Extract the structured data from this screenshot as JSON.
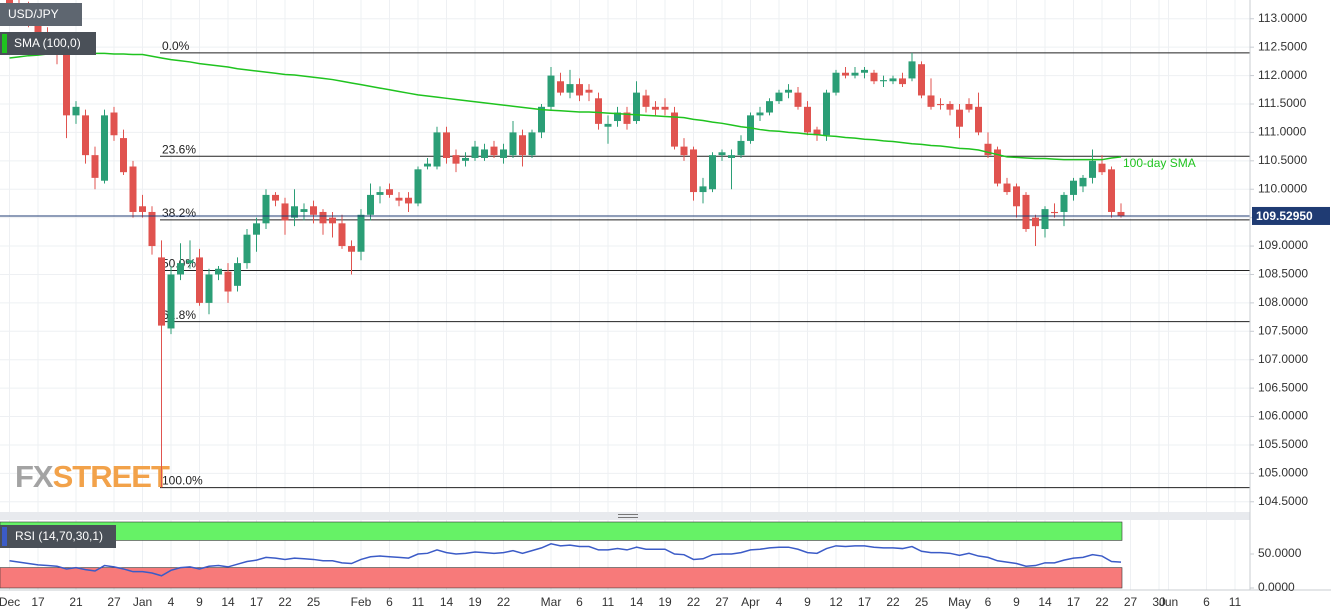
{
  "chart_data": [
    {
      "type": "candlestick",
      "title": "USD/JPY",
      "categories": [
        "Dec",
        null,
        null,
        "17",
        null,
        null,
        null,
        "21",
        null,
        null,
        null,
        "27",
        null,
        null,
        "Jan",
        null,
        null,
        "4",
        null,
        null,
        "9",
        null,
        null,
        "14",
        null,
        null,
        "17",
        null,
        null,
        "22",
        null,
        null,
        "25",
        null,
        null,
        null,
        null,
        "Feb",
        null,
        null,
        "6",
        null,
        null,
        "11",
        null,
        null,
        "14",
        null,
        null,
        "19",
        null,
        null,
        "22",
        null,
        null,
        null,
        null,
        "Mar",
        null,
        null,
        "6",
        null,
        null,
        "11",
        null,
        null,
        "14",
        null,
        null,
        "19",
        null,
        null,
        "22",
        null,
        null,
        "27",
        null,
        null,
        "Apr",
        null,
        null,
        "4",
        null,
        null,
        "9",
        null,
        null,
        "12",
        null,
        null,
        "17",
        null,
        null,
        "22",
        null,
        null,
        "25",
        null,
        null,
        null,
        "May",
        null,
        null,
        "6",
        null,
        null,
        "9",
        null,
        null,
        "14",
        null,
        null,
        "17",
        null,
        null,
        "22",
        null,
        null,
        "27",
        null,
        null,
        "30",
        "Jun",
        null,
        null,
        null,
        "6",
        null,
        null,
        "11"
      ],
      "open": [
        113.35,
        113.2,
        113.05,
        112.9,
        112.7,
        112.6,
        112.5,
        111.3,
        111.3,
        110.6,
        110.15,
        111.35,
        110.9,
        110.4,
        109.7,
        109.6,
        108.8,
        107.55,
        108.5,
        108.7,
        108.8,
        108.0,
        108.5,
        108.55,
        108.3,
        108.7,
        109.2,
        109.4,
        109.9,
        109.75,
        109.5,
        109.6,
        109.7,
        109.6,
        109.5,
        109.4,
        109.0,
        108.9,
        109.55,
        109.9,
        110.0,
        109.85,
        109.85,
        109.75,
        110.4,
        110.4,
        111.0,
        110.6,
        110.5,
        110.55,
        110.55,
        110.75,
        110.55,
        110.6,
        110.95,
        110.6,
        111.0,
        111.45,
        111.9,
        111.7,
        111.85,
        111.75,
        111.6,
        111.1,
        111.2,
        111.35,
        111.2,
        111.65,
        111.45,
        111.45,
        111.35,
        110.75,
        110.7,
        109.95,
        110.0,
        110.6,
        110.55,
        110.6,
        110.85,
        111.3,
        111.35,
        111.55,
        111.7,
        111.7,
        111.45,
        111.05,
        110.95,
        111.7,
        112.05,
        112.0,
        112.05,
        112.05,
        111.9,
        111.9,
        111.95,
        111.95,
        112.2,
        111.65,
        111.5,
        111.5,
        111.4,
        111.5,
        111.45,
        110.8,
        110.7,
        110.1,
        110.05,
        109.9,
        109.5,
        109.3,
        109.6,
        109.6,
        109.9,
        110.05,
        110.2,
        110.45,
        110.35,
        109.6,
        null,
        null,
        null,
        null,
        null,
        null,
        null,
        null,
        null,
        null,
        null,
        null
      ],
      "high": [
        113.5,
        113.4,
        113.3,
        113.05,
        112.85,
        112.7,
        112.6,
        111.55,
        111.4,
        110.75,
        111.4,
        111.45,
        111.05,
        110.5,
        109.9,
        109.7,
        109.1,
        108.65,
        109.05,
        109.1,
        108.95,
        108.6,
        108.65,
        108.7,
        108.8,
        109.3,
        109.5,
        110.0,
        109.95,
        109.85,
        110.0,
        109.75,
        109.8,
        109.65,
        109.6,
        109.55,
        109.1,
        109.65,
        110.1,
        110.05,
        110.1,
        109.95,
        109.95,
        110.4,
        110.55,
        111.1,
        111.1,
        110.7,
        110.65,
        110.85,
        110.8,
        110.85,
        110.8,
        111.2,
        111.05,
        111.05,
        111.5,
        112.15,
        112.05,
        112.1,
        111.95,
        111.85,
        111.7,
        111.3,
        111.45,
        111.45,
        111.9,
        111.75,
        111.55,
        111.6,
        111.45,
        110.9,
        110.75,
        110.2,
        110.65,
        110.7,
        110.7,
        110.95,
        111.35,
        111.45,
        111.6,
        111.75,
        111.85,
        111.8,
        111.55,
        111.1,
        111.75,
        112.1,
        112.15,
        112.15,
        112.15,
        112.1,
        112.0,
        112.0,
        112.05,
        112.4,
        112.25,
        111.95,
        111.6,
        111.55,
        111.5,
        111.6,
        111.7,
        111.0,
        110.75,
        110.2,
        110.1,
        109.95,
        109.55,
        109.7,
        109.75,
        109.95,
        110.2,
        110.25,
        110.7,
        110.6,
        110.4,
        109.75,
        null,
        null,
        null,
        null,
        null,
        null,
        null,
        null,
        null,
        null,
        null,
        null
      ],
      "low": [
        113.1,
        113.0,
        112.85,
        112.6,
        112.5,
        112.2,
        110.9,
        111.15,
        110.45,
        110.0,
        110.1,
        110.85,
        110.25,
        109.5,
        109.5,
        108.85,
        104.75,
        107.45,
        108.4,
        108.6,
        107.95,
        107.8,
        108.4,
        108.0,
        108.2,
        108.6,
        108.9,
        109.3,
        109.7,
        109.2,
        109.35,
        109.45,
        109.4,
        109.2,
        109.15,
        108.95,
        108.5,
        108.75,
        109.45,
        109.75,
        109.85,
        109.7,
        109.6,
        109.7,
        110.35,
        110.35,
        110.45,
        110.3,
        110.4,
        110.5,
        110.5,
        110.55,
        110.45,
        110.55,
        110.4,
        110.55,
        110.9,
        111.4,
        111.65,
        111.6,
        111.55,
        111.55,
        111.05,
        110.8,
        111.1,
        111.05,
        111.15,
        111.35,
        111.3,
        111.3,
        110.7,
        110.5,
        109.8,
        109.75,
        109.95,
        110.5,
        110.0,
        110.55,
        110.8,
        111.2,
        111.3,
        111.5,
        111.6,
        111.4,
        110.95,
        110.85,
        110.85,
        111.65,
        111.95,
        111.95,
        111.95,
        111.85,
        111.8,
        111.85,
        111.8,
        111.9,
        111.6,
        111.4,
        111.4,
        111.3,
        110.9,
        111.35,
        110.95,
        110.55,
        110.05,
        109.9,
        109.5,
        109.25,
        109.0,
        109.15,
        109.5,
        109.35,
        109.8,
        109.95,
        110.1,
        110.25,
        109.5,
        109.5,
        null,
        null,
        null,
        null,
        null,
        null,
        null,
        null,
        null,
        null,
        null,
        null
      ],
      "close": [
        113.15,
        113.05,
        112.95,
        112.7,
        112.6,
        112.45,
        111.3,
        111.45,
        110.6,
        110.2,
        111.3,
        110.95,
        110.3,
        109.6,
        109.6,
        109.0,
        107.6,
        108.5,
        108.7,
        108.75,
        108.0,
        108.5,
        108.6,
        108.2,
        108.7,
        109.2,
        109.4,
        109.9,
        109.8,
        109.45,
        109.7,
        109.65,
        109.55,
        109.4,
        109.4,
        109.0,
        108.9,
        109.55,
        109.9,
        109.95,
        109.9,
        109.8,
        109.75,
        110.35,
        110.45,
        111.0,
        110.55,
        110.45,
        110.55,
        110.75,
        110.7,
        110.6,
        110.7,
        111.0,
        110.6,
        111.0,
        111.45,
        112.0,
        111.7,
        111.85,
        111.65,
        111.7,
        111.15,
        111.15,
        111.35,
        111.15,
        111.7,
        111.45,
        111.4,
        111.4,
        110.75,
        110.6,
        109.95,
        110.05,
        110.6,
        110.65,
        110.6,
        110.85,
        111.3,
        111.35,
        111.55,
        111.7,
        111.75,
        111.45,
        111.0,
        110.95,
        111.7,
        112.05,
        112.0,
        112.05,
        112.1,
        111.9,
        111.92,
        111.95,
        111.85,
        112.25,
        111.65,
        111.45,
        111.48,
        111.4,
        111.1,
        111.4,
        111.0,
        110.6,
        110.1,
        109.95,
        109.7,
        109.3,
        109.35,
        109.65,
        109.58,
        109.9,
        110.15,
        110.2,
        110.5,
        110.3,
        109.6,
        109.5295,
        null,
        null,
        null,
        null,
        null,
        null,
        null,
        null,
        null,
        null,
        null,
        null
      ],
      "up_color": "#2b9e76",
      "down_color": "#e0534f",
      "series": [
        {
          "name": "SMA (100,0)",
          "color": "#1fc31f",
          "values": [
            112.31,
            112.33,
            112.35,
            112.36,
            112.38,
            112.4,
            112.4,
            112.4,
            112.39,
            112.39,
            112.39,
            112.38,
            112.38,
            112.37,
            112.37,
            112.34,
            112.31,
            112.28,
            112.26,
            112.24,
            112.21,
            112.19,
            112.17,
            112.15,
            112.12,
            112.1,
            112.08,
            112.06,
            112.04,
            112.02,
            112.01,
            111.99,
            111.97,
            111.95,
            111.93,
            111.9,
            111.87,
            111.84,
            111.81,
            111.78,
            111.75,
            111.72,
            111.69,
            111.66,
            111.64,
            111.62,
            111.6,
            111.58,
            111.56,
            111.54,
            111.52,
            111.5,
            111.48,
            111.46,
            111.44,
            111.42,
            111.4,
            111.39,
            111.38,
            111.37,
            111.36,
            111.36,
            111.35,
            111.34,
            111.33,
            111.32,
            111.31,
            111.3,
            111.29,
            111.28,
            111.27,
            111.26,
            111.23,
            111.21,
            111.18,
            111.16,
            111.13,
            111.1,
            111.08,
            111.05,
            111.03,
            111.02,
            111.0,
            110.99,
            110.97,
            110.96,
            110.94,
            110.93,
            110.91,
            110.9,
            110.88,
            110.87,
            110.85,
            110.84,
            110.82,
            110.8,
            110.79,
            110.77,
            110.76,
            110.74,
            110.72,
            110.71,
            110.69,
            110.65,
            110.61,
            110.57,
            110.56,
            110.55,
            110.54,
            110.54,
            110.53,
            110.52,
            110.52,
            110.52,
            110.52,
            110.52,
            110.55,
            110.57,
            null,
            null,
            null,
            null,
            null,
            null,
            null,
            null,
            null,
            null,
            null,
            null
          ]
        }
      ],
      "annotation": "100-day SMA",
      "fibonacci": {
        "labels": [
          "0.0%",
          "23.6%",
          "38.2%",
          "50.0%",
          "61.8%",
          "100.0%"
        ],
        "values": [
          112.4,
          110.58,
          109.46,
          108.57,
          107.67,
          104.75
        ],
        "color": "#222222"
      },
      "last_price": {
        "value": 109.5295,
        "label": "109.52950"
      },
      "last_price_color": "#1f3b73",
      "ylim": [
        104.32,
        113.33
      ],
      "yticks": [
        {
          "value": 113,
          "label": "113.0000"
        },
        {
          "value": 112.5,
          "label": "112.5000"
        },
        {
          "value": 112,
          "label": "112.0000"
        },
        {
          "value": 111.5,
          "label": "111.5000"
        },
        {
          "value": 111,
          "label": "111.0000"
        },
        {
          "value": 110.5,
          "label": "110.5000"
        },
        {
          "value": 110,
          "label": "110.0000"
        },
        {
          "value": 109.5,
          "label": "109.5000"
        },
        {
          "value": 109,
          "label": "109.0000"
        },
        {
          "value": 108.5,
          "label": "108.5000"
        },
        {
          "value": 108,
          "label": "108.0000"
        },
        {
          "value": 107.5,
          "label": "107.5000"
        },
        {
          "value": 107,
          "label": "107.0000"
        },
        {
          "value": 106.5,
          "label": "106.5000"
        },
        {
          "value": 106,
          "label": "106.0000"
        },
        {
          "value": 105.5,
          "label": "105.5000"
        },
        {
          "value": 105,
          "label": "105.0000"
        },
        {
          "value": 104.5,
          "label": "104.5000"
        }
      ],
      "grid": true,
      "watermark": [
        "FX",
        "STREET"
      ]
    },
    {
      "type": "line",
      "title": "RSI (14,70,30,1)",
      "color": "#3b5bc7",
      "values": [
        40,
        38,
        36,
        34,
        33,
        32,
        28,
        30,
        27,
        25,
        33,
        31,
        28,
        24,
        24,
        22,
        18,
        26,
        30,
        31,
        28,
        32,
        33,
        31,
        35,
        39,
        41,
        45,
        44,
        42,
        44,
        43,
        42,
        40,
        40,
        37,
        36,
        42,
        46,
        47,
        46,
        45,
        44,
        50,
        51,
        56,
        52,
        50,
        51,
        53,
        52,
        51,
        52,
        55,
        51,
        55,
        59,
        65,
        62,
        63,
        61,
        61,
        56,
        56,
        58,
        56,
        60,
        57,
        57,
        57,
        50,
        49,
        42,
        43,
        49,
        50,
        50,
        52,
        56,
        57,
        59,
        60,
        60,
        57,
        52,
        51,
        58,
        62,
        61,
        62,
        62,
        60,
        59,
        59,
        58,
        61,
        54,
        52,
        52,
        51,
        48,
        51,
        47,
        45,
        40,
        38,
        36,
        32,
        33,
        37,
        37,
        41,
        44,
        45,
        49,
        47,
        39,
        38,
        null,
        null,
        null,
        null,
        null,
        null,
        null,
        null,
        null,
        null,
        null,
        null
      ],
      "overbought": 70,
      "oversold": 30,
      "overbought_color": "#66f266",
      "oversold_color": "#f77a7a",
      "ylim": [
        0,
        100
      ],
      "yticks": [
        {
          "value": 50,
          "label": "50.0000"
        },
        {
          "value": 0,
          "label": "0.0000"
        }
      ]
    }
  ]
}
